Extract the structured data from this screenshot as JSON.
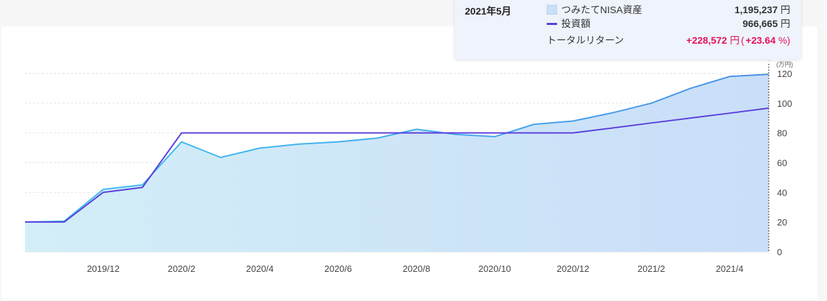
{
  "tooltip": {
    "date": "2021年5月",
    "asset_label": "つみたてNISA資産",
    "asset_value": "1,195,237",
    "invest_label": "投資額",
    "invest_value": "966,665",
    "return_label": "トータルリターン",
    "return_value": "+228,572",
    "return_pct": "+23.64",
    "yen": "円",
    "open_paren": "(",
    "pct_unit": "%)"
  },
  "colors": {
    "asset_line": "#3db2ee",
    "asset_line_late": "#4a8ee8",
    "asset_fill": "#cde6f8",
    "invest_line": "#5b3fdc"
  },
  "chart_data": {
    "type": "area",
    "unit_label": "(万円)",
    "ylim": [
      0,
      120
    ],
    "y_ticks": [
      "0",
      "20",
      "40",
      "60",
      "80",
      "100",
      "120"
    ],
    "x": [
      "2019/10",
      "2019/11",
      "2019/12",
      "2020/1",
      "2020/2",
      "2020/3",
      "2020/4",
      "2020/5",
      "2020/6",
      "2020/7",
      "2020/8",
      "2020/9",
      "2020/10",
      "2020/11",
      "2020/12",
      "2021/1",
      "2021/2",
      "2021/3",
      "2021/4",
      "2021/5"
    ],
    "x_tick_labels": [
      "2019/12",
      "2020/2",
      "2020/4",
      "2020/6",
      "2020/8",
      "2020/10",
      "2020/12",
      "2021/2",
      "2021/4"
    ],
    "x_tick_index": [
      2,
      4,
      6,
      8,
      10,
      12,
      14,
      16,
      18
    ],
    "series": [
      {
        "name": "つみたてNISA資産",
        "values": [
          20,
          20.6,
          42,
          45,
          74,
          63.5,
          69.8,
          72.5,
          74,
          76.5,
          82.5,
          79,
          77.5,
          85.8,
          88,
          93.5,
          100,
          110,
          118,
          119.5
        ]
      },
      {
        "name": "投資額",
        "values": [
          20,
          20,
          40,
          43.3,
          80,
          80,
          80,
          80,
          80,
          80,
          80,
          80,
          80,
          80,
          80,
          83.3,
          86.7,
          90,
          93.3,
          96.7
        ]
      }
    ],
    "grid": true,
    "highlight_index": 19
  }
}
